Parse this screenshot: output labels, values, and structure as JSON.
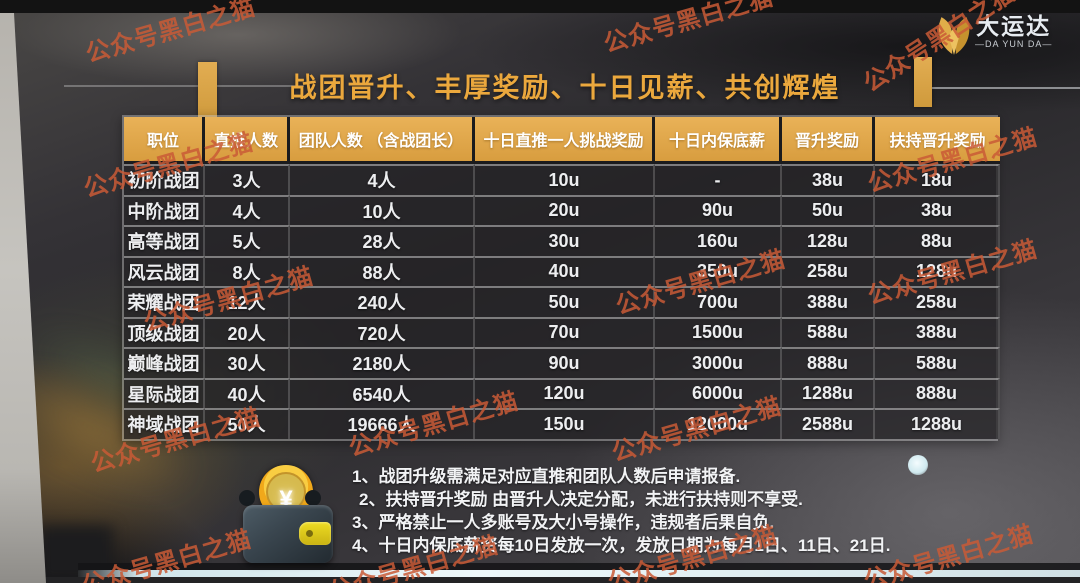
{
  "watermark": {
    "text": "公众号黑白之猫"
  },
  "logo": {
    "name": "大运达",
    "latin": "—DA YUN DA—"
  },
  "title": "战团晋升、丰厚奖励、十日见薪、共创辉煌",
  "table": {
    "headers": [
      "职位",
      "直推人数",
      "团队人数 （含战团长）",
      "十日直推一人挑战奖励",
      "十日内保底薪",
      "晋升奖励",
      "扶持晋升奖励"
    ],
    "rows": [
      [
        "初阶战团",
        "3人",
        "4人",
        "10u",
        "-",
        "38u",
        "18u"
      ],
      [
        "中阶战团",
        "4人",
        "10人",
        "20u",
        "90u",
        "50u",
        "38u"
      ],
      [
        "高等战团",
        "5人",
        "28人",
        "30u",
        "160u",
        "128u",
        "88u"
      ],
      [
        "风云战团",
        "8人",
        "88人",
        "40u",
        "350u",
        "258u",
        "128u"
      ],
      [
        "荣耀战团",
        "12人",
        "240人",
        "50u",
        "700u",
        "388u",
        "258u"
      ],
      [
        "顶级战团",
        "20人",
        "720人",
        "70u",
        "1500u",
        "588u",
        "388u"
      ],
      [
        "巅峰战团",
        "30人",
        "2180人",
        "90u",
        "3000u",
        "888u",
        "588u"
      ],
      [
        "星际战团",
        "40人",
        "6540人",
        "120u",
        "6000u",
        "1288u",
        "888u"
      ],
      [
        "神域战团",
        "50人",
        "19666人",
        "150u",
        "12000u",
        "2588u",
        "1288u"
      ]
    ]
  },
  "notes": {
    "items": [
      "1、战团升级需满足对应直推和团队人数后申请报备.",
      "2、扶持晋升奖励 由晋升人决定分配，未进行扶持则不享受.",
      "3、严格禁止一人多账号及大小号操作，违规者后果自负.",
      "4、十日内保底薪资每10日发放一次，发放日期为每月1日、11日、21日."
    ],
    "coin_symbol": "¥"
  },
  "colors": {
    "header_gold": "#E2A94E",
    "title_gold": "#EBA83D",
    "watermark_orange": "#C95A36",
    "screen_dark": "#2E2D2F"
  }
}
